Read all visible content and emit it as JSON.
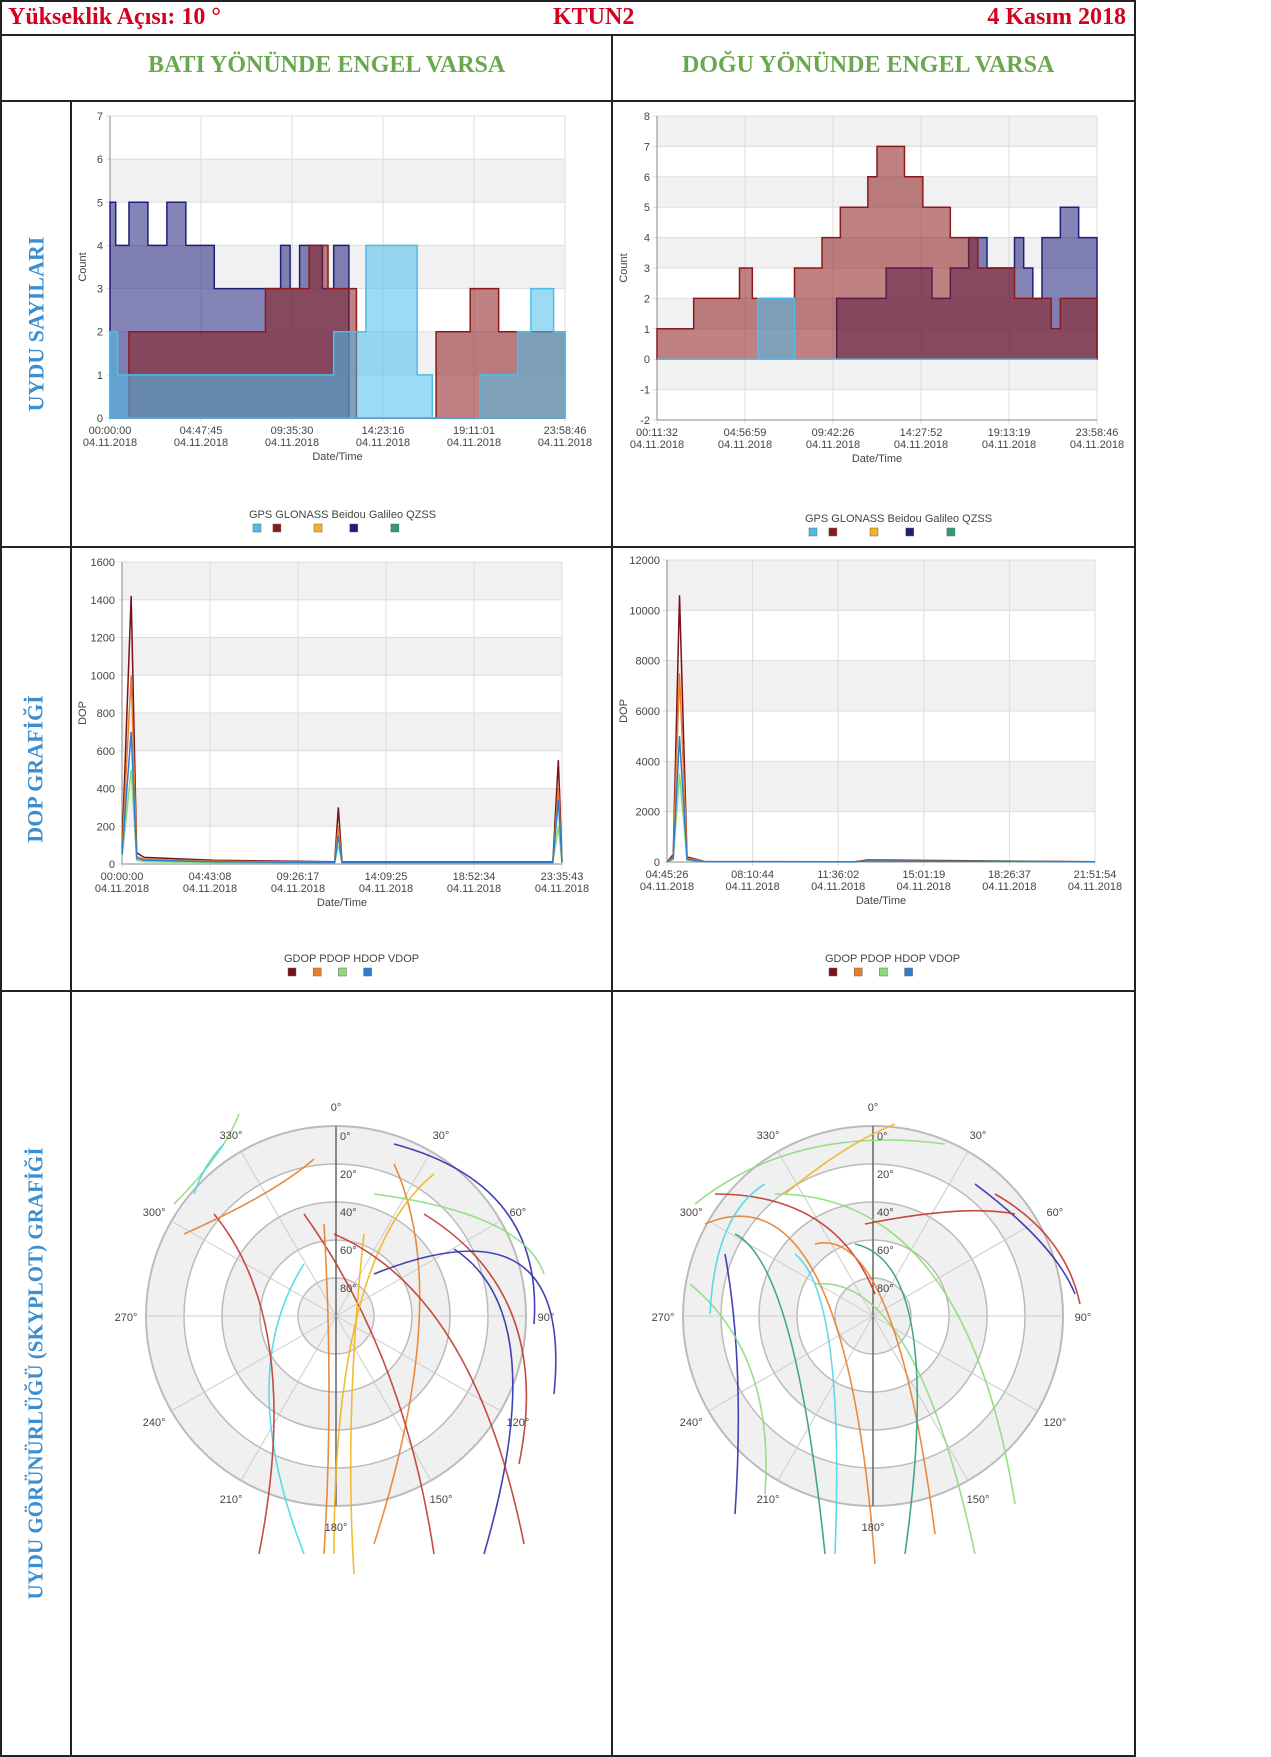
{
  "header": {
    "left": "Yükseklik Açısı: 10 °",
    "center": "KTUN2",
    "right": "4 Kasım 2018"
  },
  "columns": {
    "west": "BATI YÖNÜNDE ENGEL VARSA",
    "east": "DOĞU YÖNÜNDE ENGEL VARSA"
  },
  "rows": {
    "count": "UYDU SAYILARI",
    "dop": "DOP GRAFİĞİ",
    "sky": "UYDU GÖRÜNÜRLÜĞÜ (SKYPLOT) GRAFİĞİ"
  },
  "colors": {
    "GPS": "#4bbde9",
    "GLONASS": "#8b1a1a",
    "Beidou": "#f2b31e",
    "Galileo": "#1f1f7a",
    "QZSS": "#2e9e74",
    "GDOP": "#7b1016",
    "PDOP": "#e8802a",
    "HDOP": "#8ddb7a",
    "VDOP": "#2c7fd0"
  },
  "chart_data": [
    {
      "type": "area",
      "id": "count-west",
      "ylabel": "Count",
      "xlabel": "Date/Time",
      "ylim": [
        0,
        7
      ],
      "yticks": [
        "0",
        "1",
        "2",
        "3",
        "4",
        "5",
        "6",
        "7"
      ],
      "xticks": [
        "00:00:00",
        "04:47:45",
        "09:35:30",
        "14:23:16",
        "19:11:01",
        "23:58:46"
      ],
      "xdates": [
        "04.11.2018",
        "04.11.2018",
        "04.11.2018",
        "04.11.2018",
        "04.11.2018",
        "04.11.2018"
      ],
      "legend": [
        "GPS",
        "GLONASS",
        "Beidou",
        "Galileo",
        "QZSS"
      ],
      "grid": true,
      "series": [
        {
          "name": "Galileo",
          "x": [
            0,
            0.3,
            1.0,
            2.0,
            3.0,
            4.0,
            5.5,
            6.4,
            9.0,
            9.5,
            10.0,
            11.2,
            11.8,
            12.6
          ],
          "values": [
            5,
            4,
            5,
            4,
            5,
            4,
            3,
            3,
            4,
            3,
            4,
            3,
            4,
            0
          ]
        },
        {
          "name": "GLONASS",
          "x": [
            0,
            0.3,
            1.0,
            6.8,
            8.2,
            10.5,
            11.5,
            13.0,
            17.2,
            19.0,
            20.5,
            24.0
          ],
          "values": [
            0,
            0,
            2,
            2,
            3,
            4,
            3,
            0,
            2,
            3,
            2,
            0
          ]
        },
        {
          "name": "GPS",
          "x": [
            0,
            0.4,
            5.5,
            11.8,
            13.5,
            16.2,
            17.0,
            19.5,
            21.5,
            22.2,
            23.4,
            24.0
          ],
          "values": [
            2,
            1,
            1,
            2,
            4,
            1,
            0,
            1,
            2,
            3,
            2,
            0
          ]
        }
      ]
    },
    {
      "type": "area",
      "id": "count-east",
      "ylabel": "Count",
      "xlabel": "Date/Time",
      "ylim": [
        -2,
        8
      ],
      "yticks": [
        "-2",
        "-1",
        "0",
        "1",
        "2",
        "3",
        "4",
        "5",
        "6",
        "7",
        "8"
      ],
      "xticks": [
        "00:11:32",
        "04:56:59",
        "09:42:26",
        "14:27:52",
        "19:13:19",
        "23:58:46"
      ],
      "xdates": [
        "04.11.2018",
        "04.11.2018",
        "04.11.2018",
        "04.11.2018",
        "04.11.2018",
        "04.11.2018"
      ],
      "legend": [
        "GPS",
        "GLONASS",
        "Beidou",
        "Galileo",
        "QZSS"
      ],
      "grid": true,
      "series": [
        {
          "name": "Galileo",
          "x": [
            0,
            9.8,
            12.5,
            15.0,
            16.0,
            17.0,
            18.0,
            19.5,
            20.0,
            20.5,
            21.0,
            22.0,
            23.0,
            24.0
          ],
          "values": [
            0,
            2,
            3,
            2,
            3,
            4,
            3,
            4,
            3,
            2,
            4,
            5,
            4,
            0
          ]
        },
        {
          "name": "GLONASS",
          "x": [
            0,
            2.0,
            4.5,
            5.2,
            7.5,
            9.0,
            10.0,
            11.5,
            12.0,
            13.5,
            14.5,
            16.0,
            17.5,
            19.5,
            21.5,
            22.0,
            24.0
          ],
          "values": [
            1,
            2,
            3,
            2,
            3,
            4,
            5,
            6,
            7,
            6,
            5,
            4,
            3,
            2,
            1,
            2,
            0
          ]
        },
        {
          "name": "GPS",
          "x": [
            0,
            5.5,
            7.0,
            7.5,
            24.0
          ],
          "values": [
            0,
            2,
            2,
            0,
            0
          ]
        }
      ]
    },
    {
      "type": "line",
      "id": "dop-west",
      "ylabel": "DOP",
      "xlabel": "Date/Time",
      "ylim": [
        0,
        1600
      ],
      "yticks": [
        "0",
        "200",
        "400",
        "600",
        "800",
        "1000",
        "1200",
        "1400",
        "1600"
      ],
      "xticks": [
        "00:00:00",
        "04:43:08",
        "09:26:17",
        "14:09:25",
        "18:52:34",
        "23:35:43"
      ],
      "xdates": [
        "04.11.2018",
        "04.11.2018",
        "04.11.2018",
        "04.11.2018",
        "04.11.2018",
        "04.11.2018"
      ],
      "legend": [
        "GDOP",
        "PDOP",
        "HDOP",
        "VDOP"
      ],
      "grid": true,
      "series": [
        {
          "name": "GDOP",
          "x": [
            0,
            0.5,
            0.8,
            1.2,
            5,
            11.6,
            11.8,
            12.0,
            23.5,
            23.8,
            24
          ],
          "values": [
            80,
            1420,
            60,
            35,
            20,
            12,
            300,
            12,
            12,
            550,
            12
          ]
        },
        {
          "name": "PDOP",
          "x": [
            0,
            0.5,
            0.8,
            1.2,
            5,
            11.6,
            11.8,
            12.0,
            23.5,
            23.8,
            24
          ],
          "values": [
            60,
            1000,
            40,
            25,
            15,
            10,
            200,
            10,
            10,
            400,
            10
          ]
        },
        {
          "name": "HDOP",
          "x": [
            0,
            0.5,
            0.8,
            1.2,
            5,
            11.6,
            11.8,
            12.0,
            23.5,
            23.8,
            24
          ],
          "values": [
            30,
            500,
            20,
            12,
            8,
            5,
            100,
            5,
            5,
            200,
            5
          ]
        },
        {
          "name": "VDOP",
          "x": [
            0,
            0.5,
            0.8,
            1.2,
            5,
            11.6,
            11.8,
            12.0,
            23.5,
            23.8,
            24
          ],
          "values": [
            50,
            700,
            30,
            20,
            12,
            8,
            150,
            8,
            8,
            340,
            8
          ]
        }
      ]
    },
    {
      "type": "line",
      "id": "dop-east",
      "ylabel": "DOP",
      "xlabel": "Date/Time",
      "ylim": [
        0,
        12000
      ],
      "yticks": [
        "0",
        "2000",
        "4000",
        "6000",
        "8000",
        "10000",
        "12000"
      ],
      "xticks": [
        "04:45:26",
        "08:10:44",
        "11:36:02",
        "15:01:19",
        "18:26:37",
        "21:51:54"
      ],
      "xdates": [
        "04.11.2018",
        "04.11.2018",
        "04.11.2018",
        "04.11.2018",
        "04.11.2018",
        "04.11.2018"
      ],
      "legend": [
        "GDOP",
        "PDOP",
        "HDOP",
        "VDOP"
      ],
      "grid": true,
      "series": [
        {
          "name": "GDOP",
          "x": [
            0,
            0.25,
            0.5,
            0.8,
            1.5,
            7.5,
            8,
            17.1
          ],
          "values": [
            0,
            300,
            10600,
            200,
            20,
            10,
            80,
            10
          ]
        },
        {
          "name": "PDOP",
          "x": [
            0,
            0.25,
            0.5,
            0.8,
            1.5,
            7.5,
            8,
            17.1
          ],
          "values": [
            0,
            200,
            7500,
            150,
            15,
            8,
            50,
            8
          ]
        },
        {
          "name": "HDOP",
          "x": [
            0,
            0.25,
            0.5,
            0.8,
            1.5,
            7.5,
            8,
            17.1
          ],
          "values": [
            0,
            100,
            3500,
            80,
            10,
            5,
            30,
            5
          ]
        },
        {
          "name": "VDOP",
          "x": [
            0,
            0.25,
            0.5,
            0.8,
            1.5,
            7.5,
            8,
            17.1
          ],
          "values": [
            0,
            150,
            5000,
            100,
            12,
            6,
            40,
            6
          ]
        }
      ]
    },
    {
      "type": "scatter",
      "id": "sky-west",
      "azimuth_labels": [
        "0°",
        "30°",
        "60°",
        "90°",
        "120°",
        "150°",
        "180°",
        "210°",
        "240°",
        "270°",
        "300°",
        "330°"
      ],
      "elevation_labels": [
        "0°",
        "20°",
        "40°",
        "60°",
        "80°"
      ]
    },
    {
      "type": "scatter",
      "id": "sky-east",
      "azimuth_labels": [
        "0°",
        "30°",
        "60°",
        "90°",
        "120°",
        "150°",
        "180°",
        "210°",
        "240°",
        "270°",
        "300°",
        "330°"
      ],
      "elevation_labels": [
        "0°",
        "20°",
        "40°",
        "60°",
        "80°"
      ]
    }
  ]
}
